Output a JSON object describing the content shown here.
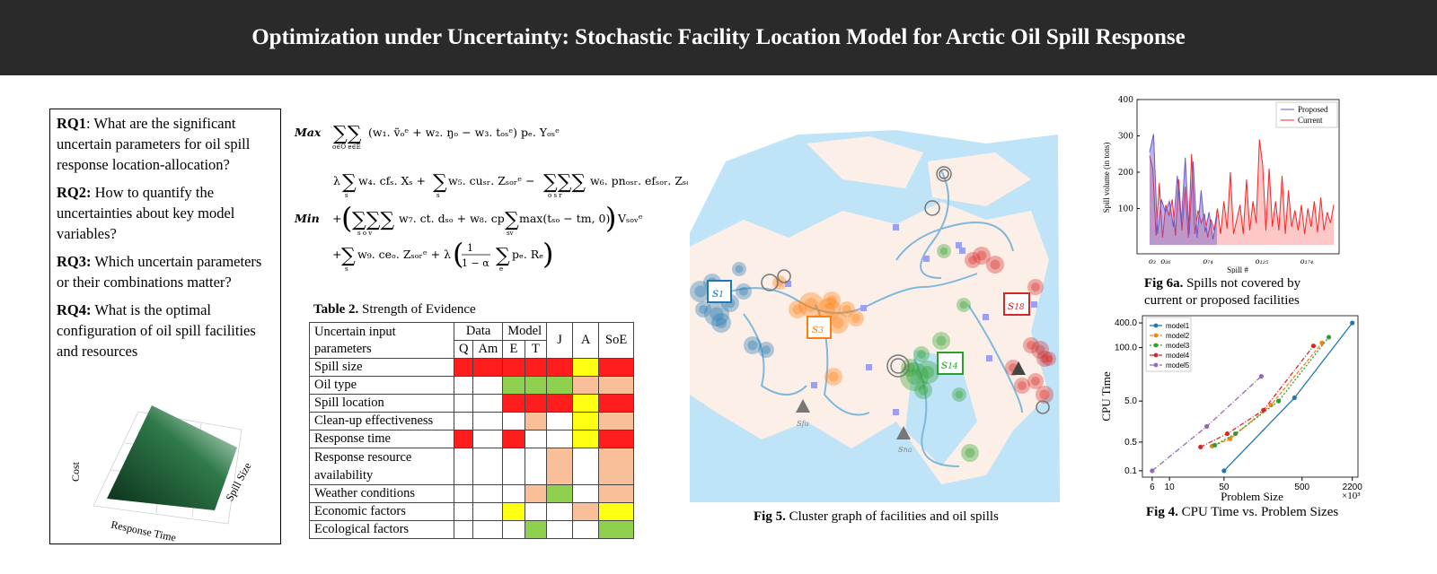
{
  "banner": {
    "title": "Optimization under Uncertainty: Stochastic Facility Location Model for Arctic Oil Spill Response"
  },
  "rq": [
    {
      "label": "RQ1",
      "text": ": What are the significant uncertain parameters for oil spill response location-allocation?"
    },
    {
      "label": "RQ2:",
      "text": " How to quantify the uncertainties about key model variables?"
    },
    {
      "label": "RQ3:",
      "text": " Which uncertain parameters or their combinations matter?"
    },
    {
      "label": "RQ4:",
      "text": " What is the optimal configuration of oil spill facilities and resources"
    }
  ],
  "surface": {
    "axis_cost": "Cost",
    "axis_time": "Response Time",
    "axis_size": "Spill Size"
  },
  "equations": {
    "max_label": "Max",
    "min_label": "Min"
  },
  "table2": {
    "caption_bold": "Table 2.",
    "caption_text": " Strength of Evidence",
    "header": {
      "c1": "Uncertain input parameters",
      "data": "Data",
      "model": "Model",
      "j": "J",
      "a": "A",
      "soe": "SoE",
      "q": "Q",
      "am": "Am",
      "e": "E",
      "t": "T"
    },
    "rows": [
      {
        "label": "Spill size",
        "cells": [
          "red",
          "red",
          "red",
          "red",
          "red",
          "yellow",
          "red"
        ]
      },
      {
        "label": "Oil type",
        "cells": [
          "white",
          "white",
          "green",
          "green",
          "green",
          "peach",
          "peach"
        ]
      },
      {
        "label": "Spill location",
        "cells": [
          "white",
          "white",
          "red",
          "red",
          "red",
          "yellow",
          "red"
        ]
      },
      {
        "label": "Clean-up effectiveness",
        "cells": [
          "white",
          "white",
          "white",
          "peach",
          "white",
          "yellow",
          "peach"
        ]
      },
      {
        "label": "Response time",
        "cells": [
          "red",
          "white",
          "red",
          "white",
          "white",
          "yellow",
          "red"
        ]
      },
      {
        "label": "Response resource availability",
        "cells": [
          "white",
          "white",
          "white",
          "white",
          "peach",
          "white",
          "peach"
        ]
      },
      {
        "label": "Weather conditions",
        "cells": [
          "white",
          "white",
          "white",
          "peach",
          "green",
          "white",
          "peach"
        ]
      },
      {
        "label": "Economic factors",
        "cells": [
          "white",
          "white",
          "yellow",
          "white",
          "white",
          "peach",
          "yellow"
        ]
      },
      {
        "label": "Ecological factors",
        "cells": [
          "white",
          "white",
          "white",
          "green",
          "white",
          "white",
          "green"
        ]
      }
    ]
  },
  "map": {
    "labels": {
      "s1": "1",
      "s3": "3",
      "s14": "14",
      "s18": "18",
      "sfu": "fu",
      "sna": "na"
    },
    "cluster_colors": {
      "blue": "#1f77b4",
      "orange": "#ff7f0e",
      "green": "#2ca02c",
      "red": "#d62728"
    }
  },
  "fig5": {
    "bold": "Fig 5.",
    "text": " Cluster graph of facilities and oil spills"
  },
  "fig6a": {
    "bold": "Fig 6a.",
    "text": " Spills not covered by current or proposed facilities",
    "chart_data": {
      "type": "area",
      "ylabel": "Spill volume (in tons)",
      "xlabel": "Spill #",
      "ylim": [
        0,
        400
      ],
      "yticks": [
        100,
        200,
        300,
        400
      ],
      "xticks": [
        "o₃",
        "o₂₆",
        "o₇₄",
        "o₁₂₅",
        "o₁₇₄"
      ],
      "legend": "top-right",
      "series": [
        {
          "name": "Proposed",
          "color": "#6a5acd",
          "values": [
            255,
            305,
            30,
            125,
            90,
            120,
            50,
            190,
            60,
            240,
            30,
            230,
            20,
            150,
            35,
            90,
            15,
            80
          ]
        },
        {
          "name": "Current",
          "color": "#ff2222",
          "values": [
            245,
            210,
            25,
            170,
            20,
            110,
            80,
            125,
            25,
            180,
            40,
            160,
            20,
            250,
            30,
            95,
            60,
            85,
            20,
            70,
            40,
            100,
            30,
            120,
            45,
            200,
            30,
            70,
            110,
            30,
            180,
            40,
            120,
            60,
            290,
            220,
            40,
            210,
            50,
            120,
            40,
            190,
            30,
            150,
            50,
            95,
            40,
            110,
            30,
            100,
            50,
            120,
            35,
            130,
            40,
            90,
            60,
            110
          ]
        }
      ]
    }
  },
  "fig4": {
    "bold": "Fig 4.",
    "text": " CPU Time vs. Problem Sizes",
    "chart_data": {
      "type": "line",
      "xlabel": "Problem Size",
      "xscale_note": "×10³",
      "ylabel": "CPU Time",
      "xticks": [
        "6",
        "10",
        "50",
        "500",
        "2200"
      ],
      "yticks": [
        "0.1",
        "0.5",
        "5.0",
        "100.0",
        "400.0"
      ],
      "legend": "top-left",
      "series": [
        {
          "name": "model1",
          "color": "#1f77b4",
          "x": [
            50,
            400,
            2200
          ],
          "y": [
            0.1,
            6,
            400
          ]
        },
        {
          "name": "model2",
          "color": "#ff7f0e",
          "x": [
            35,
            60,
            200,
            900
          ],
          "y": [
            0.4,
            0.6,
            4,
            130
          ]
        },
        {
          "name": "model3",
          "color": "#2ca02c",
          "x": [
            38,
            70,
            250,
            1100
          ],
          "y": [
            0.42,
            0.8,
            5,
            180
          ]
        },
        {
          "name": "model4",
          "color": "#d62728",
          "x": [
            25,
            55,
            160,
            700
          ],
          "y": [
            0.38,
            0.8,
            3,
            110
          ]
        },
        {
          "name": "model5",
          "color": "#9467bd",
          "x": [
            6,
            30,
            150
          ],
          "y": [
            0.1,
            1.2,
            20
          ]
        }
      ]
    }
  }
}
